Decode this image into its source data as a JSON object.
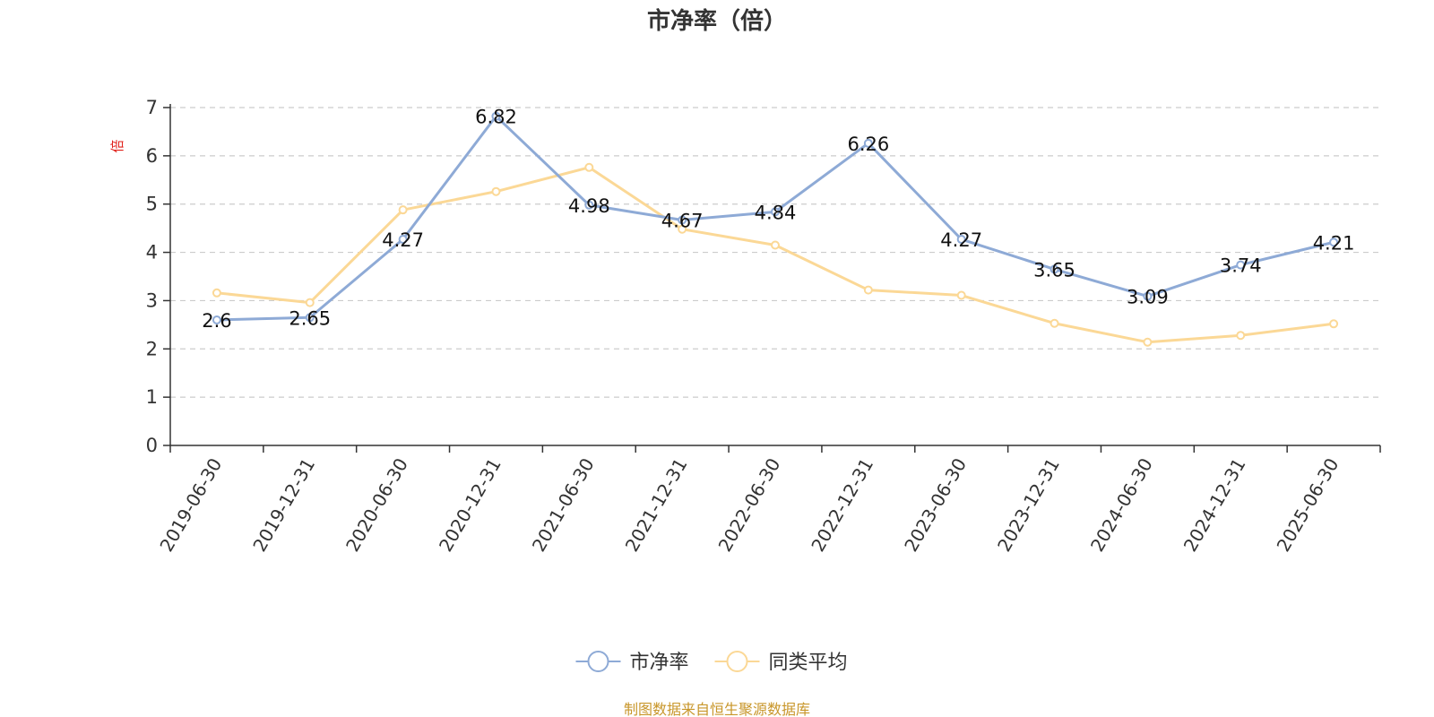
{
  "chart_data": {
    "type": "line",
    "title": "市净率（倍）",
    "ylabel": "倍",
    "ylim": [
      0,
      7
    ],
    "yticks": [
      0,
      1,
      2,
      3,
      4,
      5,
      6,
      7
    ],
    "grid": true,
    "legend_position": "bottom",
    "categories": [
      "2019-06-30",
      "2019-12-31",
      "2020-06-30",
      "2020-12-31",
      "2021-06-30",
      "2021-12-31",
      "2022-06-30",
      "2022-12-31",
      "2023-06-30",
      "2023-12-31",
      "2024-06-30",
      "2024-12-31",
      "2025-06-30"
    ],
    "series": [
      {
        "name": "市净率",
        "color": "#8eaad6",
        "show_labels": true,
        "values": [
          2.6,
          2.65,
          4.27,
          6.82,
          4.98,
          4.67,
          4.84,
          6.26,
          4.27,
          3.65,
          3.09,
          3.74,
          4.21
        ],
        "labels": [
          "2.6",
          "2.65",
          "4.27",
          "6.82",
          "4.98",
          "4.67",
          "4.84",
          "6.26",
          "4.27",
          "3.65",
          "3.09",
          "3.74",
          "4.21"
        ]
      },
      {
        "name": "同类平均",
        "color": "#fbd896",
        "show_labels": false,
        "values": [
          3.16,
          2.96,
          4.88,
          5.26,
          5.76,
          4.48,
          4.15,
          3.22,
          3.11,
          2.53,
          2.14,
          2.28,
          2.52
        ]
      }
    ],
    "source": "制图数据来自恒生聚源数据库"
  }
}
